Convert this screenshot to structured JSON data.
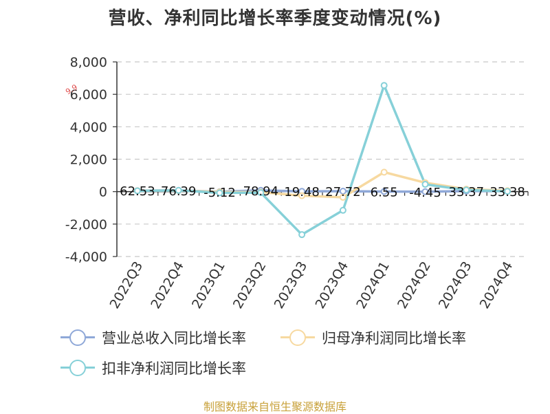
{
  "chart_data": {
    "type": "line",
    "title": "营收、净利同比增长率季度变动情况(%)",
    "xlabel": "",
    "ylabel": "",
    "ylim": [
      -4000,
      8000
    ],
    "yticks": [
      8000,
      6000,
      4000,
      2000,
      0,
      -2000,
      -4000
    ],
    "ytick_labels": [
      "8,000",
      "6,000",
      "4,000",
      "2,000",
      "0",
      "-2,000",
      "-4,000"
    ],
    "categories": [
      "2022Q3",
      "2022Q4",
      "2023Q1",
      "2023Q2",
      "2023Q3",
      "2023Q4",
      "2024Q1",
      "2024Q2",
      "2024Q3",
      "2024Q4"
    ],
    "grid": true,
    "legend_position": "bottom",
    "series": [
      {
        "name": "营业总收入同比增长率",
        "color": "#8fa8d8",
        "values": [
          62.53,
          76.39,
          -5.12,
          78.94,
          19.48,
          27.72,
          6.55,
          -4.45,
          33.37,
          33.38
        ],
        "labels": [
          "62.53",
          "76.39",
          "-5.12",
          "78.94",
          "19.48",
          "27.72",
          "6.55",
          "-4.45",
          "33.37",
          "33.38"
        ]
      },
      {
        "name": "归母净利润同比增长率",
        "color": "#f7d9a0",
        "values": [
          60,
          70,
          -20,
          -30,
          -250,
          -350,
          1200,
          550,
          150,
          60
        ]
      },
      {
        "name": "扣非净利润同比增长率",
        "color": "#86d0d8",
        "values": [
          50,
          80,
          -80,
          -60,
          -2650,
          -1150,
          6550,
          450,
          100,
          20
        ]
      }
    ],
    "annotation": "9.9"
  },
  "footer": {
    "source": "制图数据来自恒生聚源数据库"
  }
}
